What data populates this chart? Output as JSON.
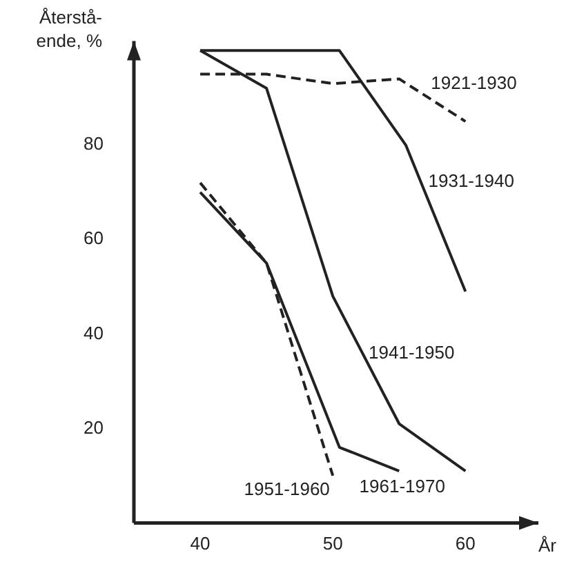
{
  "chart_data": {
    "type": "line",
    "xlabel": "År",
    "ylabel": "Återstå-\nende, %",
    "xlim": [
      35,
      65.5
    ],
    "ylim": [
      0,
      102
    ],
    "xticks": [
      40,
      50,
      60
    ],
    "yticks": [
      20,
      40,
      60,
      80
    ],
    "grid": false,
    "legend": false,
    "marker": "none",
    "series": [
      {
        "name": "1921-1930",
        "color": "#222222",
        "line_style": "dashed",
        "x": [
          40,
          45,
          50,
          55,
          60
        ],
        "values": [
          95,
          95,
          93,
          94,
          85
        ]
      },
      {
        "name": "1931-1940",
        "color": "#222222",
        "line_style": "solid",
        "x": [
          40,
          50.5,
          55.5,
          60
        ],
        "values": [
          100,
          100,
          80,
          49
        ]
      },
      {
        "name": "1941-1950",
        "color": "#222222",
        "line_style": "solid",
        "x": [
          40,
          45,
          50,
          55,
          60
        ],
        "values": [
          100,
          92,
          48,
          21,
          11
        ]
      },
      {
        "name": "1951-1960",
        "color": "#222222",
        "line_style": "dashed",
        "x": [
          40,
          45,
          50
        ],
        "values": [
          72,
          55,
          10
        ]
      },
      {
        "name": "1961-1970",
        "color": "#222222",
        "line_style": "solid",
        "x": [
          40,
          45,
          50.5,
          55
        ],
        "values": [
          70,
          55,
          16,
          11
        ]
      }
    ]
  }
}
